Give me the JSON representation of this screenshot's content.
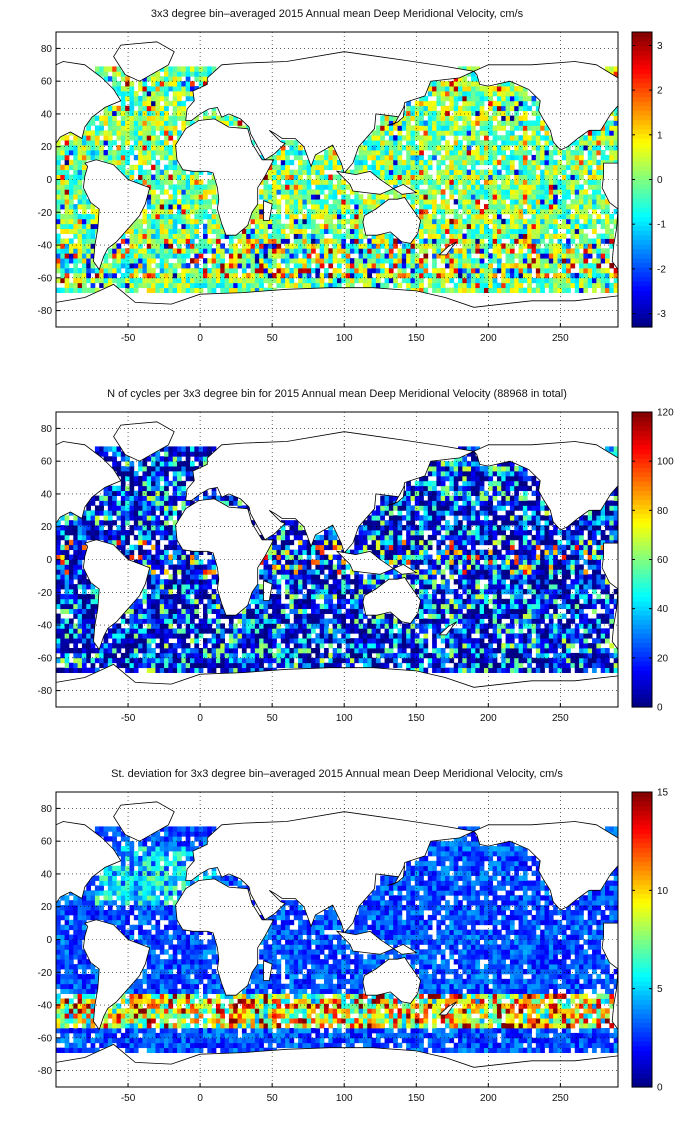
{
  "charts": [
    {
      "title": "3x3 degree bin–averaged 2015 Annual mean Deep Meridional Velocity, cm/s",
      "colorbar": {
        "min": -3.3,
        "max": 3.3,
        "ticks": [
          -3,
          -2,
          -1,
          0,
          1,
          2,
          3
        ]
      }
    },
    {
      "title": "N of cycles per 3x3 degree bin for 2015 Annual mean Deep Meridional Velocity (88968 in total)",
      "colorbar": {
        "min": 0,
        "max": 120,
        "ticks": [
          0,
          20,
          40,
          60,
          80,
          100,
          120
        ]
      }
    },
    {
      "title": "St. deviation for 3x3 degree bin–averaged 2015 Annual mean Deep Meridional Velocity, cm/s",
      "colorbar": {
        "min": 0,
        "max": 15,
        "ticks": [
          0,
          5,
          10,
          15
        ]
      }
    }
  ],
  "chart_data": [
    {
      "type": "heatmap",
      "title": "3x3 degree bin–averaged 2015 Annual mean Deep Meridional Velocity, cm/s",
      "xlim": [
        -100,
        290
      ],
      "ylim": [
        -90,
        90
      ],
      "xticks": [
        -50,
        0,
        50,
        100,
        150,
        200,
        250
      ],
      "yticks": [
        -80,
        -60,
        -40,
        -20,
        0,
        20,
        40,
        60,
        80
      ],
      "grid": true,
      "bin_size_deg": 3,
      "color_range": [
        -3.3,
        3.3
      ],
      "colormap": "jet",
      "colorbar_position": "right"
    },
    {
      "type": "heatmap",
      "title": "N of cycles per 3x3 degree bin for 2015 Annual mean Deep Meridional Velocity (88968 in total)",
      "total_cycles": 88968,
      "xlim": [
        -100,
        290
      ],
      "ylim": [
        -90,
        90
      ],
      "xticks": [
        -50,
        0,
        50,
        100,
        150,
        200,
        250
      ],
      "yticks": [
        -80,
        -60,
        -40,
        -20,
        0,
        20,
        40,
        60,
        80
      ],
      "grid": true,
      "bin_size_deg": 3,
      "color_range": [
        0,
        120
      ],
      "colormap": "jet",
      "colorbar_position": "right"
    },
    {
      "type": "heatmap",
      "title": "St. deviation for 3x3 degree bin–averaged 2015 Annual mean Deep Meridional Velocity, cm/s",
      "xlim": [
        -100,
        290
      ],
      "ylim": [
        -90,
        90
      ],
      "xticks": [
        -50,
        0,
        50,
        100,
        150,
        200,
        250
      ],
      "yticks": [
        -80,
        -60,
        -40,
        -20,
        0,
        20,
        40,
        60,
        80
      ],
      "grid": true,
      "bin_size_deg": 3,
      "color_range": [
        0,
        15
      ],
      "colormap": "jet",
      "colorbar_position": "right"
    }
  ]
}
